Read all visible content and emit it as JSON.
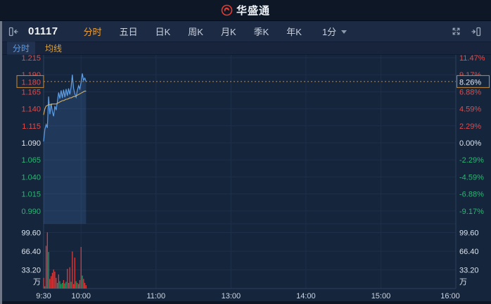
{
  "header": {
    "logo_text": "华盛通"
  },
  "toolbar": {
    "stock_code": "01117",
    "period_tabs": [
      {
        "label": "分时",
        "active": true
      },
      {
        "label": "五日",
        "active": false
      },
      {
        "label": "日K",
        "active": false
      },
      {
        "label": "周K",
        "active": false
      },
      {
        "label": "月K",
        "active": false
      },
      {
        "label": "季K",
        "active": false
      },
      {
        "label": "年K",
        "active": false
      }
    ],
    "interval_label": "1分"
  },
  "subtabs": [
    {
      "label": "分时",
      "style": "blue"
    },
    {
      "label": "均线",
      "style": "orange"
    }
  ],
  "icons": {
    "left": "panel-collapse-left-icon",
    "fullscreen": "fullscreen-icon",
    "right": "panel-collapse-right-icon",
    "interval_caret": "chevron-down-icon",
    "logo": "huasheng-flame-icon"
  },
  "colors": {
    "up": "#e04b4b",
    "down": "#2bb673",
    "flat": "#dde4ee",
    "accent": "#cf8a2e",
    "price_line": "#5f9fe6",
    "avg_line": "#d6b36a",
    "bar_up": "#d93d3d",
    "bar_down": "#22a05e",
    "grid": "#1f2f4a",
    "grid_strong": "#2c3e5d",
    "fill": "rgba(80,135,205,0.20)"
  },
  "chart_data": {
    "type": "line",
    "title": "01117 intraday (分时)",
    "prev_close": 1.09,
    "current": {
      "price": "1.180",
      "percent": "8.26%"
    },
    "price_ticks": [
      {
        "label": "1.215",
        "value": 1.215
      },
      {
        "label": "1.190",
        "value": 1.19
      },
      {
        "label": "1.165",
        "value": 1.165
      },
      {
        "label": "1.140",
        "value": 1.14
      },
      {
        "label": "1.115",
        "value": 1.115
      },
      {
        "label": "1.090",
        "value": 1.09
      },
      {
        "label": "1.065",
        "value": 1.065
      },
      {
        "label": "1.040",
        "value": 1.04
      },
      {
        "label": "1.015",
        "value": 1.015
      },
      {
        "label": "0.990",
        "value": 0.99
      }
    ],
    "percent_ticks": [
      "11.47%",
      "9.17%",
      "6.88%",
      "4.59%",
      "2.29%",
      "0.00%",
      "-2.29%",
      "-4.59%",
      "-6.88%",
      "-9.17%"
    ],
    "volume_ticks": [
      {
        "label": "99.60",
        "value": 99.6
      },
      {
        "label": "66.40",
        "value": 66.4
      },
      {
        "label": "33.20",
        "value": 33.2
      }
    ],
    "volume_unit": "万",
    "x_ticks": [
      {
        "label": "9:30",
        "minute": 0
      },
      {
        "label": "10:00",
        "minute": 30
      },
      {
        "label": "11:00",
        "minute": 90
      },
      {
        "label": "13:00",
        "minute": 150
      },
      {
        "label": "14:00",
        "minute": 210
      },
      {
        "label": "15:00",
        "minute": 270
      },
      {
        "label": "16:00",
        "minute": 330
      }
    ],
    "total_minutes": 330,
    "series": [
      {
        "name": "price",
        "color": "#5f9fe6",
        "values": [
          1.092,
          1.11,
          1.117,
          1.112,
          1.158,
          1.132,
          1.148,
          1.136,
          1.129,
          1.144,
          1.138,
          1.15,
          1.164,
          1.155,
          1.167,
          1.156,
          1.168,
          1.157,
          1.169,
          1.159,
          1.17,
          1.161,
          1.172,
          1.19,
          1.17,
          1.162,
          1.157,
          1.167,
          1.174,
          1.169,
          1.179,
          1.192,
          1.182,
          1.185,
          1.18
        ]
      },
      {
        "name": "avg",
        "color": "#d6b36a",
        "values": [
          1.131,
          1.14,
          1.144,
          1.145,
          1.146,
          1.146,
          1.146,
          1.147,
          1.147,
          1.147,
          1.147,
          1.148,
          1.149,
          1.15,
          1.151,
          1.152,
          1.152,
          1.153,
          1.154,
          1.154,
          1.155,
          1.156,
          1.156,
          1.157,
          1.158,
          1.158,
          1.159,
          1.16,
          1.161,
          1.162,
          1.163,
          1.164,
          1.165,
          1.166,
          1.166
        ]
      }
    ],
    "volume_bars": [
      {
        "v": 19,
        "c": "up"
      },
      {
        "v": 4,
        "c": "down"
      },
      {
        "v": 76,
        "c": "up"
      },
      {
        "v": 100,
        "c": "up"
      },
      {
        "v": 65,
        "c": "down"
      },
      {
        "v": 17,
        "c": "up"
      },
      {
        "v": 22,
        "c": "up"
      },
      {
        "v": 28,
        "c": "up"
      },
      {
        "v": 34,
        "c": "up"
      },
      {
        "v": 30,
        "c": "up"
      },
      {
        "v": 19,
        "c": "up"
      },
      {
        "v": 10,
        "c": "down"
      },
      {
        "v": 25,
        "c": "up"
      },
      {
        "v": 13,
        "c": "down"
      },
      {
        "v": 8,
        "c": "down"
      },
      {
        "v": 10,
        "c": "down"
      },
      {
        "v": 15,
        "c": "up"
      },
      {
        "v": 9,
        "c": "down"
      },
      {
        "v": 12,
        "c": "down"
      },
      {
        "v": 35,
        "c": "up"
      },
      {
        "v": 10,
        "c": "up"
      },
      {
        "v": 38,
        "c": "up"
      },
      {
        "v": 12,
        "c": "down"
      },
      {
        "v": 66,
        "c": "up"
      },
      {
        "v": 8,
        "c": "up"
      },
      {
        "v": 55,
        "c": "up"
      },
      {
        "v": 13,
        "c": "down"
      },
      {
        "v": 10,
        "c": "up"
      },
      {
        "v": 8,
        "c": "down"
      },
      {
        "v": 15,
        "c": "up"
      },
      {
        "v": 74,
        "c": "up"
      },
      {
        "v": 23,
        "c": "down"
      },
      {
        "v": 17,
        "c": "up"
      },
      {
        "v": 10,
        "c": "up"
      },
      {
        "v": 6,
        "c": "up"
      }
    ]
  }
}
